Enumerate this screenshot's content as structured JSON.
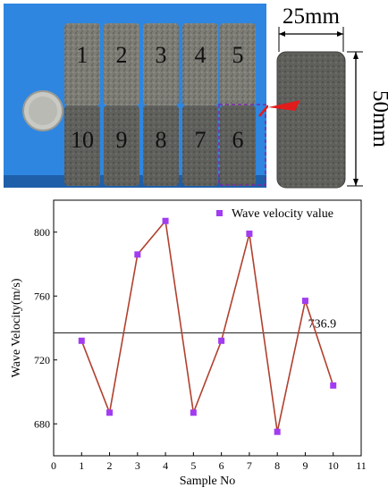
{
  "photo": {
    "labels_top": [
      "1",
      "2",
      "3",
      "4",
      "5"
    ],
    "labels_bottom": [
      "10",
      "9",
      "8",
      "7",
      "6"
    ]
  },
  "specimen": {
    "width_label": "25mm",
    "height_label": "50mm"
  },
  "colors": {
    "photo_background": "#2e86e0",
    "marker": "#a23cf2",
    "line": "#b1402e",
    "mean_line": "#222222",
    "arrow": "#e21b1b"
  },
  "chart_data": {
    "type": "line",
    "title": "",
    "xlabel": "Sample No",
    "ylabel": "Wave Velocity(m/s)",
    "xlim": [
      0,
      11
    ],
    "ylim": [
      660,
      820
    ],
    "x_ticks": [
      "0",
      "1",
      "2",
      "3",
      "4",
      "5",
      "6",
      "7",
      "8",
      "9",
      "10",
      "11"
    ],
    "y_ticks": [
      "680",
      "720",
      "760",
      "800"
    ],
    "x": [
      1,
      2,
      3,
      4,
      5,
      6,
      7,
      8,
      9,
      10
    ],
    "series": [
      {
        "name": "Wave velocity value",
        "values": [
          732,
          687,
          786,
          807,
          687,
          732,
          799,
          675,
          757,
          704
        ]
      }
    ],
    "reference_line": {
      "value": 736.9,
      "label": "736.9"
    },
    "legend_position": "top-right",
    "grid": false
  }
}
